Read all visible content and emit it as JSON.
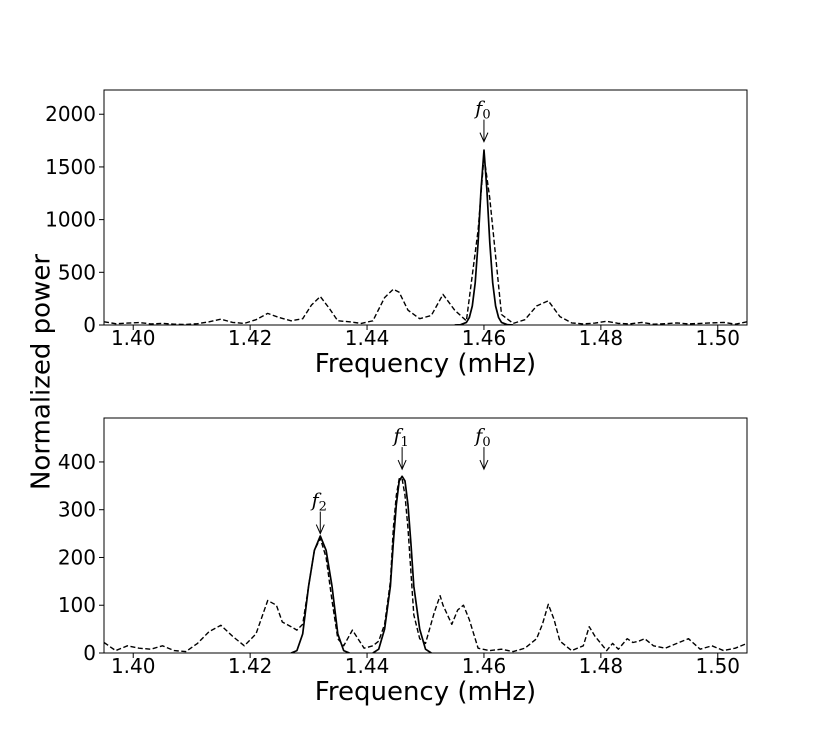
{
  "figure": {
    "ylabel": "Normalized power"
  },
  "chart_data": [
    {
      "type": "line",
      "xlabel": "Frequency (mHz)",
      "xlim": [
        1.395,
        1.505
      ],
      "ylim": [
        0,
        2230
      ],
      "xticks": [
        1.4,
        1.42,
        1.44,
        1.46,
        1.48,
        1.5
      ],
      "xtick_labels": [
        "1.40",
        "1.42",
        "1.44",
        "1.46",
        "1.48",
        "1.50"
      ],
      "yticks": [
        0,
        500,
        1000,
        1500,
        2000
      ],
      "ytick_labels": [
        "0",
        "500",
        "1000",
        "1500",
        "2000"
      ],
      "series": [
        {
          "style": "dashed",
          "x": [
            1.395,
            1.397,
            1.399,
            1.401,
            1.403,
            1.405,
            1.407,
            1.409,
            1.411,
            1.413,
            1.415,
            1.417,
            1.419,
            1.421,
            1.423,
            1.425,
            1.427,
            1.429,
            1.4305,
            1.432,
            1.4335,
            1.435,
            1.437,
            1.439,
            1.441,
            1.443,
            1.4445,
            1.4455,
            1.447,
            1.449,
            1.451,
            1.453,
            1.455,
            1.457,
            1.459,
            1.46,
            1.461,
            1.463,
            1.465,
            1.467,
            1.469,
            1.471,
            1.473,
            1.475,
            1.477,
            1.479,
            1.481,
            1.483,
            1.485,
            1.487,
            1.489,
            1.491,
            1.493,
            1.495,
            1.497,
            1.499,
            1.501,
            1.503,
            1.505
          ],
          "y": [
            30,
            12,
            18,
            24,
            10,
            15,
            8,
            5,
            12,
            30,
            55,
            25,
            15,
            50,
            110,
            70,
            40,
            60,
            190,
            270,
            160,
            40,
            30,
            15,
            40,
            260,
            340,
            310,
            140,
            60,
            90,
            290,
            140,
            40,
            900,
            1600,
            1200,
            100,
            15,
            50,
            180,
            230,
            80,
            20,
            10,
            18,
            35,
            15,
            10,
            25,
            8,
            12,
            20,
            10,
            15,
            20,
            25,
            8,
            30
          ]
        },
        {
          "style": "solid",
          "x": [
            1.455,
            1.456,
            1.457,
            1.4575,
            1.458,
            1.4585,
            1.459,
            1.4595,
            1.46,
            1.4605,
            1.461,
            1.4615,
            1.462,
            1.4625,
            1.463,
            1.464,
            1.465
          ],
          "y": [
            0,
            3,
            25,
            70,
            180,
            400,
            780,
            1280,
            1660,
            1280,
            780,
            400,
            180,
            70,
            25,
            3,
            0
          ]
        }
      ],
      "annotations": [
        {
          "label": "f",
          "sub": "0",
          "x": 1.46,
          "target_y": 1740
        }
      ]
    },
    {
      "type": "line",
      "xlabel": "Frequency (mHz)",
      "xlim": [
        1.395,
        1.505
      ],
      "ylim": [
        0,
        492
      ],
      "xticks": [
        1.4,
        1.42,
        1.44,
        1.46,
        1.48,
        1.5
      ],
      "xtick_labels": [
        "1.40",
        "1.42",
        "1.44",
        "1.46",
        "1.48",
        "1.50"
      ],
      "yticks": [
        0,
        100,
        200,
        300,
        400
      ],
      "ytick_labels": [
        "0",
        "100",
        "200",
        "300",
        "400"
      ],
      "series": [
        {
          "style": "dashed",
          "x": [
            1.395,
            1.397,
            1.399,
            1.401,
            1.403,
            1.405,
            1.407,
            1.409,
            1.411,
            1.413,
            1.415,
            1.417,
            1.419,
            1.421,
            1.423,
            1.4245,
            1.4255,
            1.427,
            1.428,
            1.429,
            1.43,
            1.431,
            1.432,
            1.433,
            1.434,
            1.435,
            1.436,
            1.4375,
            1.4395,
            1.441,
            1.442,
            1.443,
            1.444,
            1.4445,
            1.445,
            1.4455,
            1.446,
            1.4465,
            1.447,
            1.4475,
            1.448,
            1.449,
            1.45,
            1.4515,
            1.4525,
            1.453,
            1.4545,
            1.4555,
            1.4565,
            1.4575,
            1.459,
            1.461,
            1.463,
            1.465,
            1.467,
            1.469,
            1.47,
            1.471,
            1.472,
            1.473,
            1.475,
            1.477,
            1.478,
            1.479,
            1.481,
            1.482,
            1.483,
            1.4845,
            1.4855,
            1.4865,
            1.4875,
            1.489,
            1.491,
            1.493,
            1.495,
            1.497,
            1.499,
            1.501,
            1.503,
            1.505
          ],
          "y": [
            22,
            5,
            15,
            10,
            8,
            15,
            5,
            3,
            20,
            45,
            58,
            35,
            15,
            40,
            110,
            100,
            65,
            55,
            48,
            60,
            140,
            215,
            240,
            200,
            110,
            30,
            15,
            48,
            10,
            15,
            25,
            60,
            150,
            260,
            330,
            365,
            365,
            330,
            260,
            170,
            80,
            30,
            20,
            85,
            120,
            100,
            60,
            90,
            100,
            70,
            10,
            5,
            8,
            3,
            10,
            30,
            60,
            102,
            70,
            25,
            5,
            15,
            55,
            35,
            5,
            20,
            8,
            30,
            22,
            25,
            30,
            15,
            10,
            20,
            30,
            8,
            15,
            5,
            10,
            20
          ]
        },
        {
          "style": "solid",
          "x": [
            1.427,
            1.428,
            1.429,
            1.43,
            1.431,
            1.432,
            1.433,
            1.434,
            1.435,
            1.436,
            1.437
          ],
          "y": [
            0,
            5,
            40,
            140,
            215,
            245,
            215,
            140,
            40,
            5,
            0
          ]
        },
        {
          "style": "solid",
          "x": [
            1.441,
            1.442,
            1.443,
            1.444,
            1.4445,
            1.445,
            1.4455,
            1.446,
            1.4465,
            1.447,
            1.4475,
            1.448,
            1.449,
            1.45,
            1.451
          ],
          "y": [
            0,
            8,
            50,
            140,
            230,
            310,
            360,
            370,
            360,
            310,
            230,
            140,
            50,
            8,
            0
          ]
        }
      ],
      "annotations": [
        {
          "label": "f",
          "sub": "2",
          "x": 1.432,
          "target_y": 250
        },
        {
          "label": "f",
          "sub": "1",
          "x": 1.446,
          "target_y": 385
        },
        {
          "label": "f",
          "sub": "0",
          "x": 1.46,
          "target_y": 385
        }
      ]
    }
  ]
}
